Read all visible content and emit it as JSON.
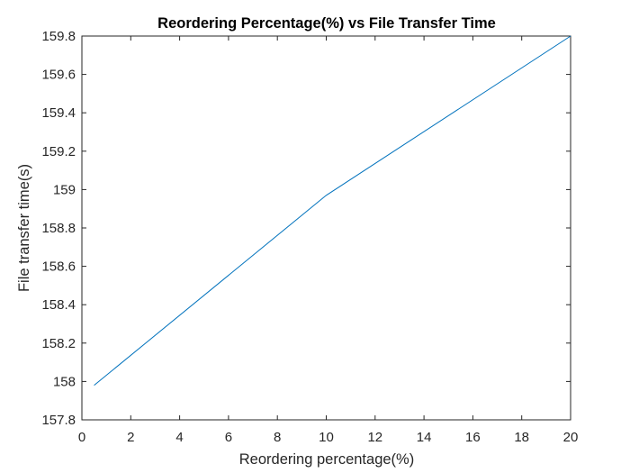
{
  "chart_data": {
    "type": "line",
    "title": "Reordering Percentage(%) vs File Transfer Time",
    "xlabel": "Reordering percentage(%)",
    "ylabel": "File transfer time(s)",
    "xlim": [
      0,
      20
    ],
    "ylim": [
      157.8,
      159.8
    ],
    "xticks": [
      0,
      2,
      4,
      6,
      8,
      10,
      12,
      14,
      16,
      18,
      20
    ],
    "xtick_labels": [
      "0",
      "2",
      "4",
      "6",
      "8",
      "10",
      "12",
      "14",
      "16",
      "18",
      "20"
    ],
    "yticks": [
      157.8,
      158,
      158.2,
      158.4,
      158.6,
      158.8,
      159,
      159.2,
      159.4,
      159.6,
      159.8
    ],
    "ytick_labels": [
      "157.8",
      "158",
      "158.2",
      "158.4",
      "158.6",
      "158.8",
      "159",
      "159.2",
      "159.4",
      "159.6",
      "159.8"
    ],
    "grid": false,
    "series": [
      {
        "x": [
          0.5,
          10,
          20
        ],
        "y": [
          157.98,
          158.97,
          159.8
        ],
        "color": "#0072BD"
      }
    ]
  }
}
